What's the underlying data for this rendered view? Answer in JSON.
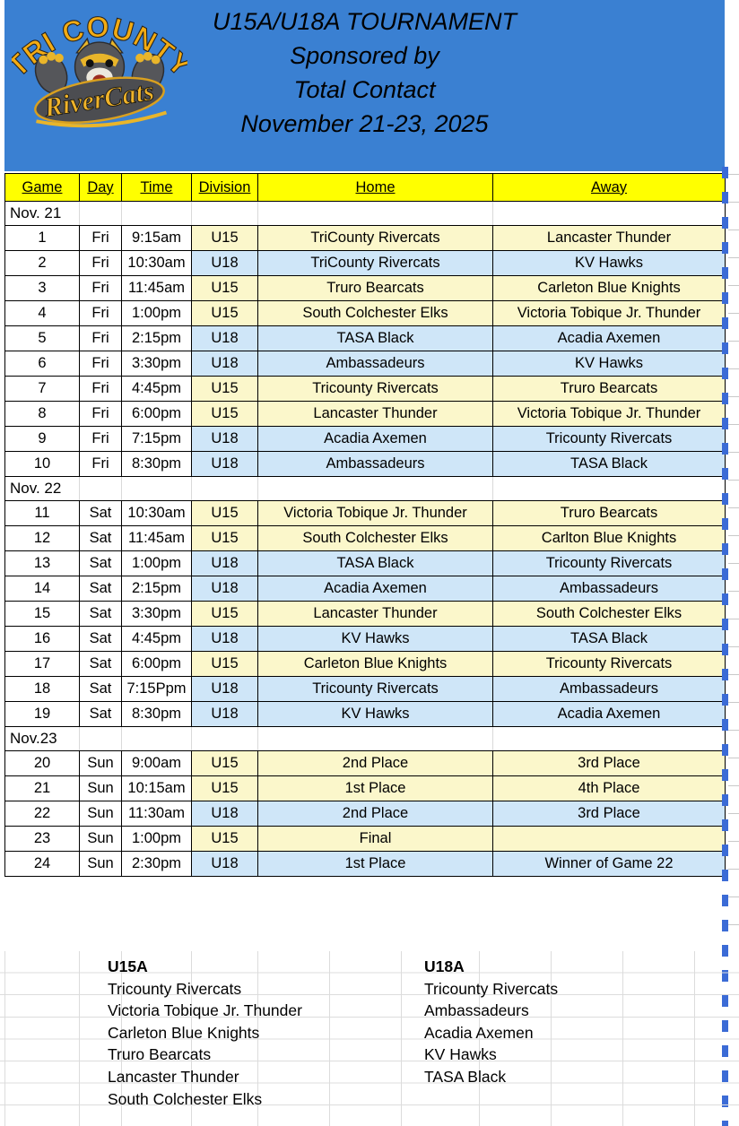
{
  "banner": {
    "title_lines": [
      "U15A/U18A TOURNAMENT",
      "Sponsored by",
      "Total Contact",
      "November 21-23, 2025"
    ],
    "logo": {
      "arc_text": "TRI COUNTY",
      "script_text": "RiverCats"
    }
  },
  "colors": {
    "banner_blue": "#3a80d2",
    "header_yellow": "#ffff00",
    "u15_fill": "#fbf7cb",
    "u18_fill": "#cfe6f8",
    "page_break_blue": "#3b6bd6"
  },
  "schedule": {
    "columns": [
      "Game",
      "Day",
      "Time",
      "Division",
      "Home",
      "Away"
    ],
    "sections": [
      {
        "label": "Nov. 21",
        "games": [
          {
            "game": "1",
            "day": "Fri",
            "time": "9:15am",
            "division": "U15",
            "home": "TriCounty Rivercats",
            "away": "Lancaster Thunder"
          },
          {
            "game": "2",
            "day": "Fri",
            "time": "10:30am",
            "division": "U18",
            "home": "TriCounty Rivercats",
            "away": "KV Hawks"
          },
          {
            "game": "3",
            "day": "Fri",
            "time": "11:45am",
            "division": "U15",
            "home": "Truro Bearcats",
            "away": "Carleton Blue Knights"
          },
          {
            "game": "4",
            "day": "Fri",
            "time": "1:00pm",
            "division": "U15",
            "home": "South Colchester Elks",
            "away": "Victoria Tobique Jr. Thunder"
          },
          {
            "game": "5",
            "day": "Fri",
            "time": "2:15pm",
            "division": "U18",
            "home": "TASA Black",
            "away": "Acadia Axemen"
          },
          {
            "game": "6",
            "day": "Fri",
            "time": "3:30pm",
            "division": "U18",
            "home": "Ambassadeurs",
            "away": "KV Hawks"
          },
          {
            "game": "7",
            "day": "Fri",
            "time": "4:45pm",
            "division": "U15",
            "home": "Tricounty Rivercats",
            "away": "Truro Bearcats"
          },
          {
            "game": "8",
            "day": "Fri",
            "time": "6:00pm",
            "division": "U15",
            "home": "Lancaster Thunder",
            "away": "Victoria Tobique Jr. Thunder"
          },
          {
            "game": "9",
            "day": "Fri",
            "time": "7:15pm",
            "division": "U18",
            "home": "Acadia Axemen",
            "away": "Tricounty Rivercats"
          },
          {
            "game": "10",
            "day": "Fri",
            "time": "8:30pm",
            "division": "U18",
            "home": "Ambassadeurs",
            "away": "TASA Black"
          }
        ]
      },
      {
        "label": "Nov. 22",
        "games": [
          {
            "game": "11",
            "day": "Sat",
            "time": "10:30am",
            "division": "U15",
            "home": "Victoria Tobique Jr. Thunder",
            "away": "Truro Bearcats"
          },
          {
            "game": "12",
            "day": "Sat",
            "time": "11:45am",
            "division": "U15",
            "home": "South Colchester Elks",
            "away": "Carlton Blue Knights"
          },
          {
            "game": "13",
            "day": "Sat",
            "time": "1:00pm",
            "division": "U18",
            "home": "TASA Black",
            "away": "Tricounty Rivercats"
          },
          {
            "game": "14",
            "day": "Sat",
            "time": "2:15pm",
            "division": "U18",
            "home": "Acadia Axemen",
            "away": "Ambassadeurs"
          },
          {
            "game": "15",
            "day": "Sat",
            "time": "3:30pm",
            "division": "U15",
            "home": "Lancaster Thunder",
            "away": "South Colchester Elks"
          },
          {
            "game": "16",
            "day": "Sat",
            "time": "4:45pm",
            "division": "U18",
            "home": "KV Hawks",
            "away": "TASA Black"
          },
          {
            "game": "17",
            "day": "Sat",
            "time": "6:00pm",
            "division": "U15",
            "home": "Carleton Blue Knights",
            "away": "Tricounty Rivercats"
          },
          {
            "game": "18",
            "day": "Sat",
            "time": "7:15Ppm",
            "division": "U18",
            "home": "Tricounty Rivercats",
            "away": "Ambassadeurs"
          },
          {
            "game": "19",
            "day": "Sat",
            "time": "8:30pm",
            "division": "U18",
            "home": "KV Hawks",
            "away": "Acadia Axemen"
          }
        ]
      },
      {
        "label": "Nov.23",
        "games": [
          {
            "game": "20",
            "day": "Sun",
            "time": "9:00am",
            "division": "U15",
            "home": "2nd Place",
            "away": "3rd Place"
          },
          {
            "game": "21",
            "day": "Sun",
            "time": "10:15am",
            "division": "U15",
            "home": "1st Place",
            "away": "4th Place"
          },
          {
            "game": "22",
            "day": "Sun",
            "time": "11:30am",
            "division": "U18",
            "home": "2nd Place",
            "away": "3rd Place"
          },
          {
            "game": "23",
            "day": "Sun",
            "time": "1:00pm",
            "division": "U15",
            "home": "Final",
            "away": ""
          },
          {
            "game": "24",
            "day": "Sun",
            "time": "2:30pm",
            "division": "U18",
            "home": "1st Place",
            "away": "Winner of Game 22"
          }
        ]
      }
    ]
  },
  "rosters": [
    {
      "division": "U15A",
      "teams": [
        "Tricounty Rivercats",
        "Victoria Tobique Jr. Thunder",
        "Carleton Blue Knights",
        "Truro Bearcats",
        "Lancaster Thunder",
        "South Colchester Elks"
      ]
    },
    {
      "division": "U18A",
      "teams": [
        "Tricounty Rivercats",
        "Ambassadeurs",
        "Acadia Axemen",
        "KV Hawks",
        "TASA Black"
      ]
    }
  ]
}
